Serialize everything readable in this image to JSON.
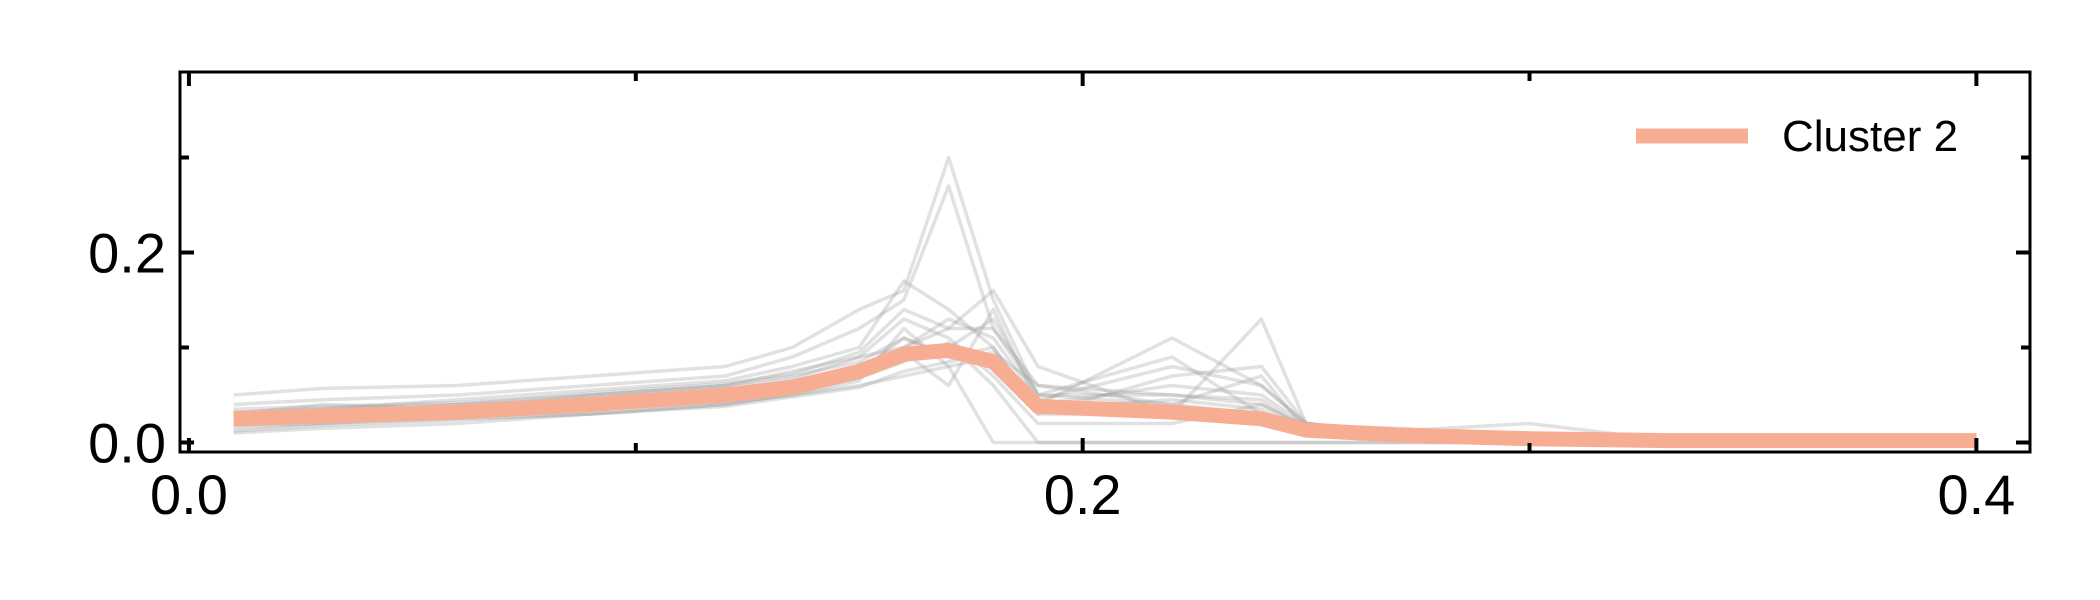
{
  "chart_data": {
    "type": "line",
    "xlim": [
      -0.002,
      0.412
    ],
    "ylim": [
      -0.01,
      0.39
    ],
    "x_ticks": [
      {
        "value": 0.0,
        "label": "0.0"
      },
      {
        "value": 0.2,
        "label": "0.2"
      },
      {
        "value": 0.4,
        "label": "0.4"
      }
    ],
    "x_minor_ticks": [
      0.1,
      0.3
    ],
    "y_ticks": [
      {
        "value": 0.0,
        "label": "0.0"
      },
      {
        "value": 0.2,
        "label": "0.2"
      }
    ],
    "y_minor_ticks": [
      0.1,
      0.3
    ],
    "grid": false,
    "legend_position": "top-right",
    "colors": {
      "highlight": "#f7ad92",
      "background_lines": "#9a9a9a"
    },
    "highlight_series": {
      "name": "Cluster 2",
      "x": [
        0.01,
        0.03,
        0.06,
        0.09,
        0.12,
        0.135,
        0.15,
        0.16,
        0.17,
        0.18,
        0.19,
        0.22,
        0.24,
        0.25,
        0.27,
        0.3,
        0.33,
        0.36,
        0.4
      ],
      "y": [
        0.025,
        0.028,
        0.032,
        0.04,
        0.05,
        0.058,
        0.075,
        0.093,
        0.097,
        0.085,
        0.038,
        0.032,
        0.025,
        0.013,
        0.008,
        0.004,
        0.002,
        0.002,
        0.002
      ]
    },
    "background_series": [
      {
        "values": [
          0.05,
          0.057,
          0.06,
          0.07,
          0.08,
          0.1,
          0.14,
          0.16,
          0.3,
          0.15,
          0.05,
          0.04,
          0.03,
          0.02,
          0.01,
          0.005,
          0.002,
          0.001,
          0.001
        ]
      },
      {
        "values": [
          0.04,
          0.045,
          0.05,
          0.06,
          0.07,
          0.09,
          0.12,
          0.15,
          0.27,
          0.12,
          0.06,
          0.05,
          0.04,
          0.015,
          0.008,
          0.004,
          0.002,
          0.001,
          0.001
        ]
      },
      {
        "values": [
          0.03,
          0.035,
          0.045,
          0.055,
          0.065,
          0.08,
          0.1,
          0.17,
          0.14,
          0.1,
          0.04,
          0.11,
          0.06,
          0.02,
          0.01,
          0.003,
          0.001,
          0.001,
          0.001
        ]
      },
      {
        "values": [
          0.02,
          0.025,
          0.03,
          0.04,
          0.05,
          0.06,
          0.08,
          0.1,
          0.12,
          0.16,
          0.08,
          0.03,
          0.13,
          0.02,
          0.01,
          0.005,
          0.003,
          0.001,
          0.001
        ]
      },
      {
        "values": [
          0.015,
          0.02,
          0.03,
          0.035,
          0.045,
          0.055,
          0.07,
          0.09,
          0.1,
          0.13,
          0.05,
          0.09,
          0.03,
          0.015,
          0.012,
          0.004,
          0.002,
          0.001,
          0.001
        ]
      },
      {
        "values": [
          0.01,
          0.015,
          0.02,
          0.03,
          0.04,
          0.05,
          0.065,
          0.12,
          0.08,
          0.0,
          0.0,
          0.0,
          0.0,
          0.0,
          0.0,
          0.0,
          0.0,
          0.0,
          0.0
        ]
      },
      {
        "values": [
          0.03,
          0.04,
          0.035,
          0.05,
          0.06,
          0.07,
          0.085,
          0.11,
          0.09,
          0.1,
          0.03,
          0.07,
          0.08,
          0.02,
          0.01,
          0.006,
          0.003,
          0.002,
          0.001
        ]
      },
      {
        "values": [
          0.025,
          0.03,
          0.04,
          0.045,
          0.055,
          0.065,
          0.08,
          0.095,
          0.06,
          0.14,
          0.04,
          0.06,
          0.05,
          0.018,
          0.015,
          0.008,
          0.004,
          0.002,
          0.001
        ]
      },
      {
        "values": [
          0.02,
          0.022,
          0.028,
          0.035,
          0.042,
          0.05,
          0.06,
          0.07,
          0.08,
          0.09,
          0.035,
          0.045,
          0.035,
          0.012,
          0.01,
          0.003,
          0.002,
          0.001,
          0.001
        ]
      },
      {
        "values": [
          0.035,
          0.038,
          0.042,
          0.05,
          0.06,
          0.075,
          0.09,
          0.13,
          0.11,
          0.07,
          0.02,
          0.02,
          0.04,
          0.017,
          0.006,
          0.004,
          0.001,
          0.001,
          0.001
        ]
      },
      {
        "values": [
          0.018,
          0.02,
          0.025,
          0.03,
          0.04,
          0.052,
          0.068,
          0.085,
          0.105,
          0.06,
          0.0,
          0.0,
          0.0,
          0.0,
          0.0,
          0.0,
          0.0,
          0.0,
          0.0
        ]
      },
      {
        "values": [
          0.028,
          0.032,
          0.036,
          0.048,
          0.058,
          0.067,
          0.09,
          0.1,
          0.13,
          0.11,
          0.045,
          0.08,
          0.06,
          0.02,
          0.012,
          0.02,
          0.003,
          0.001,
          0.001
        ]
      },
      {
        "values": [
          0.022,
          0.026,
          0.034,
          0.04,
          0.05,
          0.06,
          0.075,
          0.11,
          0.09,
          0.08,
          0.03,
          0.03,
          0.03,
          0.01,
          0.01,
          0.005,
          0.002,
          0.001,
          0.001
        ]
      },
      {
        "values": [
          0.032,
          0.036,
          0.04,
          0.052,
          0.062,
          0.072,
          0.095,
          0.14,
          0.12,
          0.12,
          0.05,
          0.05,
          0.045,
          0.015,
          0.014,
          0.007,
          0.004,
          0.002,
          0.001
        ]
      },
      {
        "values": [
          0.012,
          0.018,
          0.024,
          0.03,
          0.038,
          0.048,
          0.058,
          0.075,
          0.085,
          0.095,
          0.06,
          0.04,
          0.07,
          0.013,
          0.008,
          0.003,
          0.002,
          0.001,
          0.001
        ]
      }
    ]
  }
}
